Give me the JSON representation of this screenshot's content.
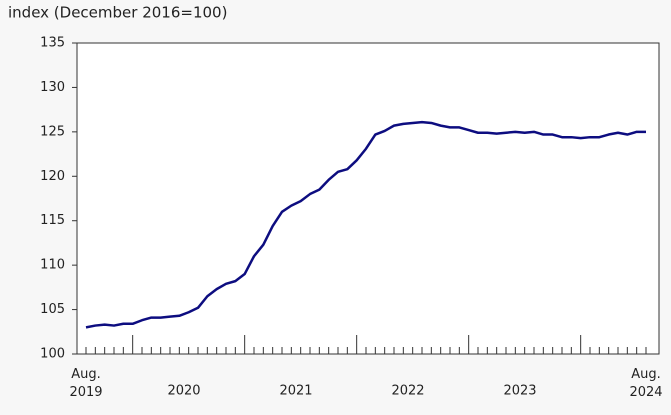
{
  "chart_data": {
    "type": "line",
    "y_axis_label": "index (December 2016=100)",
    "categories": [
      "Aug. 2019",
      null,
      null,
      null,
      null,
      null,
      null,
      null,
      null,
      null,
      null,
      null,
      null,
      null,
      null,
      null,
      null,
      null,
      null,
      null,
      null,
      null,
      null,
      null,
      null,
      null,
      null,
      null,
      null,
      null,
      null,
      null,
      null,
      null,
      null,
      null,
      null,
      null,
      null,
      null,
      null,
      null,
      null,
      null,
      null,
      null,
      null,
      null,
      null,
      null,
      null,
      null,
      null,
      null,
      null,
      null,
      null,
      null,
      null,
      null,
      "Aug. 2024"
    ],
    "year_labels": [
      "2020",
      "2021",
      "2022",
      "2023"
    ],
    "series": [
      {
        "color": "#0d0d80",
        "values": [
          103.0,
          103.2,
          103.3,
          103.2,
          103.4,
          103.4,
          103.8,
          104.1,
          104.1,
          104.2,
          104.3,
          104.7,
          105.2,
          106.5,
          107.3,
          107.9,
          108.2,
          109.0,
          111.0,
          112.3,
          114.4,
          116.0,
          116.7,
          117.2,
          118.0,
          118.5,
          119.6,
          120.5,
          120.8,
          121.8,
          123.1,
          124.7,
          125.1,
          125.7,
          125.9,
          126.0,
          126.1,
          126.0,
          125.7,
          125.5,
          125.5,
          125.2,
          124.9,
          124.9,
          124.8,
          124.9,
          125.0,
          124.9,
          125.0,
          124.7,
          124.7,
          124.4,
          124.4,
          124.3,
          124.4,
          124.4,
          124.7,
          124.9,
          124.7,
          125.0,
          125.0
        ]
      }
    ],
    "ylim": [
      100,
      135
    ],
    "yticks": [
      100,
      105,
      110,
      115,
      120,
      125,
      130,
      135
    ],
    "grid": false
  }
}
